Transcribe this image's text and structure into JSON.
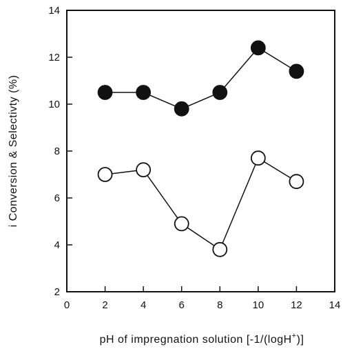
{
  "chart_data": {
    "type": "scatter",
    "title": "",
    "xlabel": "pH of impregnation solution [-1/(logH",
    "xlabel_sup": "+",
    "xlabel_suffix": ")]",
    "ylabel": "i Conversion & Selectivty (%)",
    "xlim": [
      0,
      14
    ],
    "ylim": [
      2,
      14
    ],
    "xticks": [
      0,
      2,
      4,
      6,
      8,
      10,
      12,
      14
    ],
    "yticks": [
      2,
      4,
      6,
      8,
      10,
      12,
      14
    ],
    "grid": false,
    "legend": "none",
    "series": [
      {
        "marker": "filled-circle",
        "color": "#111111",
        "x": [
          2,
          4,
          6,
          8,
          10,
          12
        ],
        "y": [
          10.5,
          10.5,
          9.8,
          10.5,
          12.4,
          11.4
        ]
      },
      {
        "marker": "open-circle",
        "color": "#111111",
        "x": [
          2,
          4,
          6,
          8,
          10,
          12
        ],
        "y": [
          7.0,
          7.2,
          4.9,
          3.8,
          7.7,
          6.7
        ]
      }
    ]
  }
}
